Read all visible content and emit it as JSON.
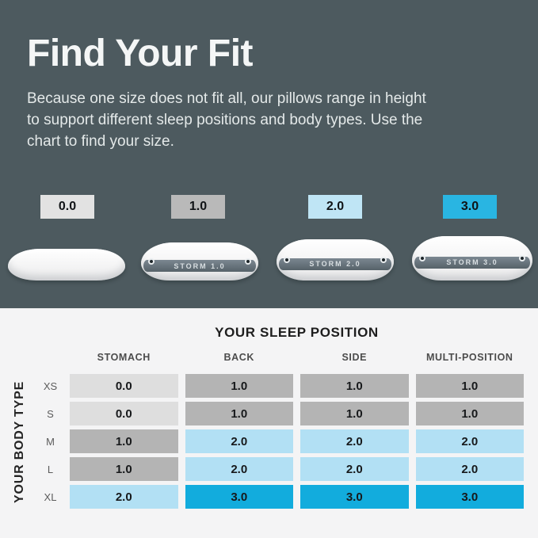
{
  "palette": {
    "background": "#4d5a5f",
    "panel": "#f4f4f5",
    "chip0": "#e2e2e2",
    "chip1": "#b9b9b9",
    "chip2": "#bfe5f5",
    "chip3": "#29b5e2",
    "size0": "#dedede",
    "size1": "#b4b4b4",
    "size2": "#b2e0f4",
    "size3": "#12acdd"
  },
  "hero": {
    "title": "Find Your Fit",
    "description": "Because one size does not fit all, our pillows range in height to support different sleep positions and body types. Use the chart to find your size."
  },
  "sizes": [
    {
      "label": "0.0",
      "product": ""
    },
    {
      "label": "1.0",
      "product": "STORM 1.0"
    },
    {
      "label": "2.0",
      "product": "STORM 2.0"
    },
    {
      "label": "3.0",
      "product": "STORM 3.0"
    }
  ],
  "chart_data": {
    "type": "table",
    "title": "YOUR SLEEP POSITION",
    "row_axis_label": "YOUR BODY TYPE",
    "columns": [
      "STOMACH",
      "BACK",
      "SIDE",
      "MULTI-POSITION"
    ],
    "rows": [
      {
        "label": "XS",
        "values": [
          "0.0",
          "1.0",
          "1.0",
          "1.0"
        ]
      },
      {
        "label": "S",
        "values": [
          "0.0",
          "1.0",
          "1.0",
          "1.0"
        ]
      },
      {
        "label": "M",
        "values": [
          "1.0",
          "2.0",
          "2.0",
          "2.0"
        ]
      },
      {
        "label": "L",
        "values": [
          "1.0",
          "2.0",
          "2.0",
          "2.0"
        ]
      },
      {
        "label": "XL",
        "values": [
          "2.0",
          "3.0",
          "3.0",
          "3.0"
        ]
      }
    ],
    "legend": [
      {
        "size": "0.0",
        "color": "#dedede"
      },
      {
        "size": "1.0",
        "color": "#b4b4b4"
      },
      {
        "size": "2.0",
        "color": "#b2e0f4"
      },
      {
        "size": "3.0",
        "color": "#12acdd"
      }
    ]
  }
}
